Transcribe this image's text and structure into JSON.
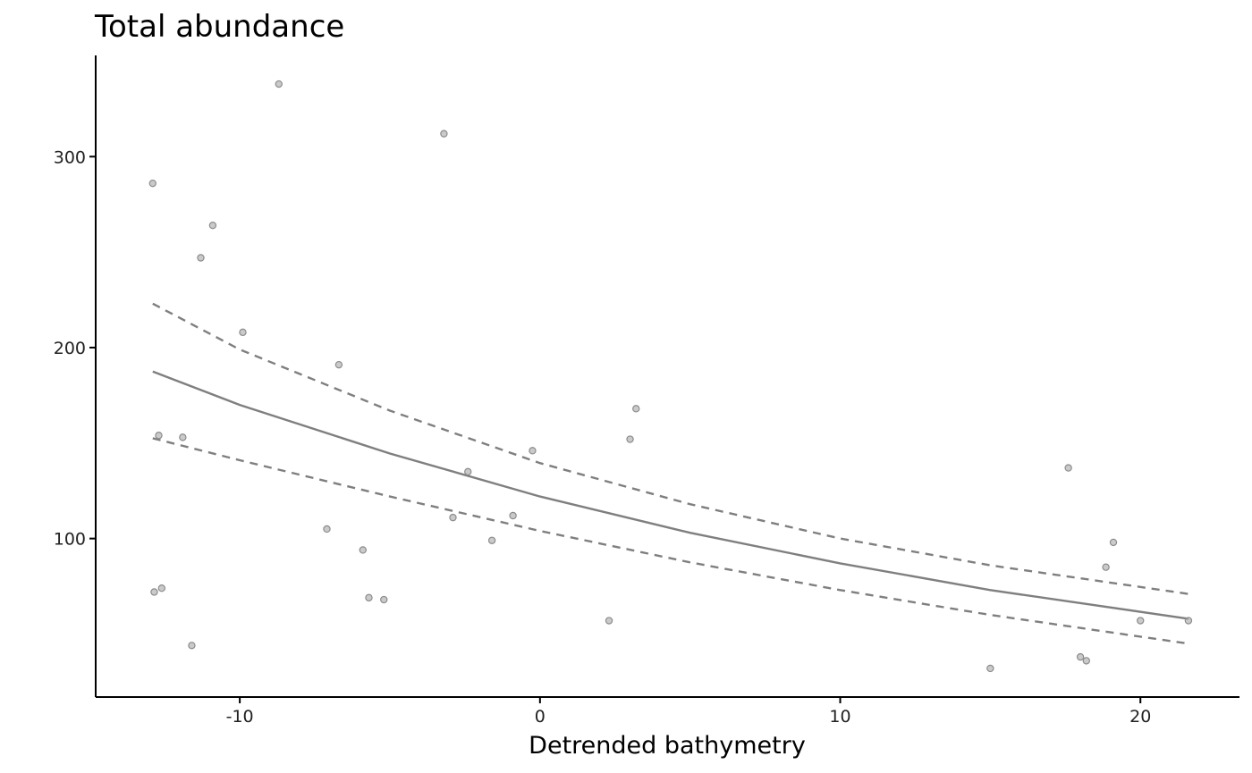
{
  "chart_data": {
    "type": "scatter",
    "title": "Total abundance",
    "xlabel": "Detrended bathymetry",
    "ylabel": "",
    "xlim": [
      -14.8,
      23.3
    ],
    "ylim": [
      17,
      353
    ],
    "x_ticks": [
      -10,
      0,
      10,
      20
    ],
    "y_ticks": [
      100,
      200,
      300
    ],
    "grid": false,
    "points": [
      {
        "x": -12.9,
        "y": 286
      },
      {
        "x": -12.85,
        "y": 72
      },
      {
        "x": -12.7,
        "y": 154
      },
      {
        "x": -12.6,
        "y": 74
      },
      {
        "x": -11.9,
        "y": 153
      },
      {
        "x": -11.6,
        "y": 44
      },
      {
        "x": -11.3,
        "y": 247
      },
      {
        "x": -10.9,
        "y": 264
      },
      {
        "x": -9.9,
        "y": 208
      },
      {
        "x": -8.7,
        "y": 338
      },
      {
        "x": -7.1,
        "y": 105
      },
      {
        "x": -6.7,
        "y": 191
      },
      {
        "x": -5.9,
        "y": 94
      },
      {
        "x": -5.7,
        "y": 69
      },
      {
        "x": -5.2,
        "y": 68
      },
      {
        "x": -3.2,
        "y": 312
      },
      {
        "x": -2.9,
        "y": 111
      },
      {
        "x": -2.4,
        "y": 135
      },
      {
        "x": -1.6,
        "y": 99
      },
      {
        "x": -0.9,
        "y": 112
      },
      {
        "x": -0.25,
        "y": 146
      },
      {
        "x": 2.3,
        "y": 57
      },
      {
        "x": 3.0,
        "y": 152
      },
      {
        "x": 3.2,
        "y": 168
      },
      {
        "x": 15.0,
        "y": 32
      },
      {
        "x": 17.6,
        "y": 137
      },
      {
        "x": 18.0,
        "y": 38
      },
      {
        "x": 18.2,
        "y": 36
      },
      {
        "x": 18.85,
        "y": 85
      },
      {
        "x": 19.1,
        "y": 98
      },
      {
        "x": 20.0,
        "y": 57
      },
      {
        "x": 21.6,
        "y": 57
      }
    ],
    "series": [
      {
        "name": "",
        "style": "solid",
        "x": [
          -12.9,
          -10,
          -5,
          0,
          5,
          10,
          15,
          21.6
        ],
        "y": [
          187.5,
          170,
          144.5,
          122,
          103,
          87,
          73,
          58
        ]
      },
      {
        "name": "",
        "style": "dashed",
        "x": [
          -12.9,
          -10,
          -5,
          0,
          5,
          10,
          15,
          21.6
        ],
        "y": [
          223,
          199,
          167,
          139.5,
          118,
          100,
          86,
          71
        ]
      },
      {
        "name": "",
        "style": "dashed",
        "x": [
          -12.9,
          -10,
          -5,
          0,
          5,
          10,
          15,
          21.6
        ],
        "y": [
          152.5,
          141,
          122,
          104,
          87.5,
          73,
          60,
          45
        ]
      }
    ],
    "colors": {
      "points": "#a6a6a6",
      "lines": "#7f7f7f",
      "axis": "#000000"
    }
  }
}
